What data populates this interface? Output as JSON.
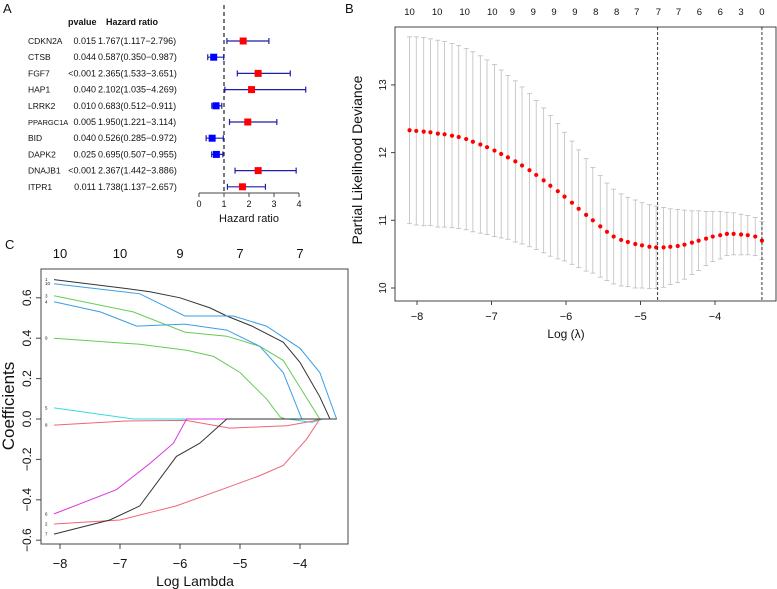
{
  "panel_labels": {
    "a": "A",
    "b": "B",
    "c": "C"
  },
  "chart_data": [
    {
      "type": "forest",
      "panel": "A",
      "headers": {
        "pvalue": "pvalue",
        "hr": "Hazard ratio"
      },
      "xlabel": "Hazard ratio",
      "xticks": [
        0,
        1,
        2,
        3,
        4
      ],
      "reference_line": 1,
      "colors": {
        "risk": "#ff0000",
        "protective": "#0000ff",
        "ci": "#1f1fa8"
      },
      "rows": [
        {
          "gene": "CDKN2A",
          "pvalue": "0.015",
          "hr_text": "1.767(1.117−2.796)",
          "hr": 1.767,
          "low": 1.117,
          "high": 2.796
        },
        {
          "gene": "CTSB",
          "pvalue": "0.044",
          "hr_text": "0.587(0.350−0.987)",
          "hr": 0.587,
          "low": 0.35,
          "high": 0.987
        },
        {
          "gene": "FGF7",
          "pvalue": "<0.001",
          "hr_text": "2.365(1.533−3.651)",
          "hr": 2.365,
          "low": 1.533,
          "high": 3.651
        },
        {
          "gene": "HAP1",
          "pvalue": "0.040",
          "hr_text": "2.102(1.035−4.269)",
          "hr": 2.102,
          "low": 1.035,
          "high": 4.269
        },
        {
          "gene": "LRRK2",
          "pvalue": "0.010",
          "hr_text": "0.683(0.512−0.911)",
          "hr": 0.683,
          "low": 0.512,
          "high": 0.911
        },
        {
          "gene": "PPARGC1A",
          "pvalue": "0.005",
          "hr_text": "1.950(1.221−3.114)",
          "hr": 1.95,
          "low": 1.221,
          "high": 3.114
        },
        {
          "gene": "BID",
          "pvalue": "0.040",
          "hr_text": "0.526(0.285−0.972)",
          "hr": 0.526,
          "low": 0.285,
          "high": 0.972
        },
        {
          "gene": "DAPK2",
          "pvalue": "0.025",
          "hr_text": "0.695(0.507−0.955)",
          "hr": 0.695,
          "low": 0.507,
          "high": 0.955
        },
        {
          "gene": "DNAJB1",
          "pvalue": "<0.001",
          "hr_text": "2.367(1.442−3.886)",
          "hr": 2.367,
          "low": 1.442,
          "high": 3.886
        },
        {
          "gene": "ITPR1",
          "pvalue": "0.011",
          "hr_text": "1.738(1.137−2.657)",
          "hr": 1.738,
          "low": 1.137,
          "high": 2.657
        }
      ]
    },
    {
      "type": "scatter",
      "panel": "B",
      "xlabel": "Log (λ)",
      "ylabel": "Partial Likelihood Deviance",
      "xlim": [
        -8.2,
        -3.3
      ],
      "ylim": [
        9.8,
        13.9
      ],
      "xticks": [
        -8,
        -7,
        -6,
        -5,
        -4
      ],
      "yticks": [
        10,
        11,
        12,
        13
      ],
      "colors": {
        "point": "#ff0000",
        "errorbar": "#bdbdbd"
      },
      "vlines": [
        -4.77,
        -3.37
      ],
      "top_labels": [
        {
          "x": -8.1,
          "label": "10"
        },
        {
          "x": -7.73,
          "label": "10"
        },
        {
          "x": -7.36,
          "label": "10"
        },
        {
          "x": -6.99,
          "label": "10"
        },
        {
          "x": -6.72,
          "label": "9"
        },
        {
          "x": -6.44,
          "label": "9"
        },
        {
          "x": -6.16,
          "label": "9"
        },
        {
          "x": -5.88,
          "label": "9"
        },
        {
          "x": -5.6,
          "label": "8"
        },
        {
          "x": -5.32,
          "label": "8"
        },
        {
          "x": -5.05,
          "label": "7"
        },
        {
          "x": -4.76,
          "label": "7"
        },
        {
          "x": -4.49,
          "label": "7"
        },
        {
          "x": -4.21,
          "label": "6"
        },
        {
          "x": -3.93,
          "label": "6"
        },
        {
          "x": -3.65,
          "label": "3"
        },
        {
          "x": -3.37,
          "label": "0"
        }
      ],
      "x": [
        -8.1,
        -8.01,
        -7.91,
        -7.82,
        -7.72,
        -7.63,
        -7.53,
        -7.44,
        -7.34,
        -7.25,
        -7.15,
        -7.06,
        -6.96,
        -6.87,
        -6.78,
        -6.68,
        -6.59,
        -6.49,
        -6.4,
        -6.3,
        -6.21,
        -6.11,
        -6.02,
        -5.92,
        -5.83,
        -5.73,
        -5.64,
        -5.54,
        -5.45,
        -5.36,
        -5.26,
        -5.17,
        -5.07,
        -4.98,
        -4.88,
        -4.79,
        -4.69,
        -4.6,
        -4.5,
        -4.41,
        -4.31,
        -4.22,
        -4.12,
        -4.03,
        -3.93,
        -3.84,
        -3.75,
        -3.65,
        -3.56,
        -3.46,
        -3.37
      ],
      "mean": [
        12.33,
        12.32,
        12.31,
        12.3,
        12.28,
        12.27,
        12.25,
        12.23,
        12.2,
        12.16,
        12.12,
        12.08,
        12.03,
        11.98,
        11.93,
        11.87,
        11.81,
        11.74,
        11.67,
        11.59,
        11.51,
        11.43,
        11.35,
        11.26,
        11.17,
        11.08,
        11.0,
        10.91,
        10.83,
        10.76,
        10.71,
        10.68,
        10.65,
        10.63,
        10.61,
        10.6,
        10.6,
        10.61,
        10.62,
        10.64,
        10.67,
        10.7,
        10.73,
        10.76,
        10.78,
        10.8,
        10.8,
        10.79,
        10.78,
        10.76,
        10.7
      ],
      "upper": [
        13.71,
        13.71,
        13.7,
        13.68,
        13.66,
        13.64,
        13.61,
        13.58,
        13.54,
        13.49,
        13.43,
        13.37,
        13.3,
        13.22,
        13.14,
        13.06,
        12.97,
        12.87,
        12.77,
        12.66,
        12.55,
        12.43,
        12.3,
        12.17,
        12.04,
        11.91,
        11.78,
        11.66,
        11.55,
        11.46,
        11.39,
        11.34,
        11.3,
        11.26,
        11.23,
        11.21,
        11.19,
        11.17,
        11.16,
        11.15,
        11.14,
        11.14,
        11.13,
        11.13,
        11.13,
        11.12,
        11.11,
        11.09,
        11.07,
        11.04,
        10.98
      ],
      "lower": [
        10.95,
        10.93,
        10.92,
        10.92,
        10.9,
        10.9,
        10.89,
        10.88,
        10.86,
        10.83,
        10.81,
        10.79,
        10.76,
        10.74,
        10.72,
        10.68,
        10.65,
        10.61,
        10.57,
        10.52,
        10.47,
        10.43,
        10.4,
        10.35,
        10.3,
        10.25,
        10.22,
        10.16,
        10.11,
        10.06,
        10.03,
        10.02,
        10.0,
        10.0,
        9.99,
        9.99,
        10.01,
        10.05,
        10.08,
        10.13,
        10.2,
        10.26,
        10.33,
        10.39,
        10.43,
        10.48,
        10.49,
        10.49,
        10.49,
        10.48,
        10.42
      ]
    },
    {
      "type": "line",
      "panel": "C",
      "xlabel": "Log Lambda",
      "ylabel": "Coefficients",
      "xlim": [
        -8.3,
        -3.2
      ],
      "ylim": [
        -0.62,
        0.72
      ],
      "xticks": [
        -8,
        -7,
        -6,
        -5,
        -4
      ],
      "yticks": [
        -0.6,
        -0.4,
        -0.2,
        0.0,
        0.2,
        0.4,
        0.6
      ],
      "ytick_labels": [
        "−0.6",
        "−0.4",
        "−0.2",
        "0.0",
        "0.2",
        "0.4",
        "0.6"
      ],
      "xtick_labels": [
        "−8",
        "−7",
        "−6",
        "−5",
        "−4"
      ],
      "top_labels": [
        {
          "x": -8,
          "label": "10"
        },
        {
          "x": -7,
          "label": "10"
        },
        {
          "x": -6,
          "label": "9"
        },
        {
          "x": -5,
          "label": "7"
        },
        {
          "x": -4,
          "label": "7"
        }
      ],
      "series": [
        {
          "name": "1",
          "color": "#333333",
          "points": [
            [
              -8.1,
              0.69
            ],
            [
              -7,
              0.65
            ],
            [
              -6.5,
              0.63
            ],
            [
              -6,
              0.6
            ],
            [
              -5.5,
              0.55
            ],
            [
              -5.22,
              0.51
            ],
            [
              -4.8,
              0.46
            ],
            [
              -4.28,
              0.38
            ],
            [
              -4.0,
              0.28
            ],
            [
              -3.67,
              0.11
            ],
            [
              -3.5,
              0.0
            ],
            [
              -3.39,
              0.0
            ]
          ]
        },
        {
          "name": "10",
          "color": "#3a9ee8",
          "points": [
            [
              -8.1,
              0.67
            ],
            [
              -6.67,
              0.62
            ],
            [
              -5.92,
              0.51
            ],
            [
              -5.11,
              0.51
            ],
            [
              -4.56,
              0.46
            ],
            [
              -4.0,
              0.35
            ],
            [
              -3.67,
              0.23
            ],
            [
              -3.39,
              0.0
            ]
          ]
        },
        {
          "name": "3",
          "color": "#66cc55",
          "points": [
            [
              -8.1,
              0.61
            ],
            [
              -6.78,
              0.53
            ],
            [
              -5.92,
              0.43
            ],
            [
              -5.22,
              0.41
            ],
            [
              -4.67,
              0.36
            ],
            [
              -4.28,
              0.29
            ],
            [
              -3.67,
              0.0
            ],
            [
              -3.39,
              0.0
            ]
          ]
        },
        {
          "name": "4",
          "color": "#3a9ee8",
          "points": [
            [
              -8.1,
              0.58
            ],
            [
              -7.33,
              0.53
            ],
            [
              -6.72,
              0.46
            ],
            [
              -5.92,
              0.47
            ],
            [
              -5.22,
              0.44
            ],
            [
              -4.67,
              0.36
            ],
            [
              -4.28,
              0.23
            ],
            [
              -3.97,
              0.0
            ],
            [
              -3.39,
              0.0
            ]
          ]
        },
        {
          "name": "9",
          "color": "#66cc55",
          "points": [
            [
              -8.1,
              0.4
            ],
            [
              -6.67,
              0.37
            ],
            [
              -5.89,
              0.34
            ],
            [
              -5.44,
              0.31
            ],
            [
              -5.0,
              0.23
            ],
            [
              -4.56,
              0.1
            ],
            [
              -4.33,
              0.01
            ],
            [
              -4.25,
              0.0
            ],
            [
              -3.39,
              0.0
            ]
          ]
        },
        {
          "name": "5",
          "color": "#33dddd",
          "points": [
            [
              -8.1,
              0.055
            ],
            [
              -6.78,
              0.0
            ],
            [
              -4.2,
              0.0
            ],
            [
              -3.8,
              -0.017
            ],
            [
              -3.62,
              0.0
            ],
            [
              -3.39,
              0.0
            ]
          ]
        },
        {
          "name": "8",
          "color": "#ee6677",
          "points": [
            [
              -8.1,
              -0.03
            ],
            [
              -6.9,
              -0.01
            ],
            [
              -5.9,
              -0.007
            ],
            [
              -5.17,
              -0.045
            ],
            [
              -4.22,
              -0.033
            ],
            [
              -3.78,
              -0.01
            ],
            [
              -3.67,
              0.0
            ],
            [
              -3.39,
              0.0
            ]
          ]
        },
        {
          "name": "6",
          "color": "#dd33dd",
          "points": [
            [
              -8.1,
              -0.47
            ],
            [
              -7.06,
              -0.35
            ],
            [
              -6.5,
              -0.22
            ],
            [
              -6.11,
              -0.12
            ],
            [
              -5.89,
              0.0
            ],
            [
              -3.39,
              0.0
            ]
          ]
        },
        {
          "name": "2",
          "color": "#ee6677",
          "points": [
            [
              -8.1,
              -0.52
            ],
            [
              -7.0,
              -0.5
            ],
            [
              -6.06,
              -0.43
            ],
            [
              -5.22,
              -0.34
            ],
            [
              -4.67,
              -0.28
            ],
            [
              -4.28,
              -0.23
            ],
            [
              -3.89,
              -0.1
            ],
            [
              -3.67,
              0.0
            ],
            [
              -3.39,
              0.0
            ]
          ]
        },
        {
          "name": "7",
          "color": "#333333",
          "points": [
            [
              -8.1,
              -0.57
            ],
            [
              -7.17,
              -0.5
            ],
            [
              -6.67,
              -0.43
            ],
            [
              -6.06,
              -0.185
            ],
            [
              -5.67,
              -0.12
            ],
            [
              -5.22,
              0.0
            ],
            [
              -3.39,
              0.0
            ]
          ]
        }
      ]
    }
  ]
}
